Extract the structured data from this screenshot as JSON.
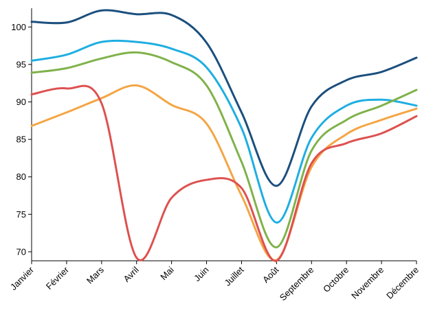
{
  "chart_data": {
    "type": "line",
    "title": "",
    "xlabel": "",
    "ylabel": "",
    "categories": [
      "Janvier",
      "Février",
      "Mars",
      "Avril",
      "Mai",
      "Juin",
      "Juillet",
      "Août",
      "Septembre",
      "Octobre",
      "Novembre",
      "Décembre"
    ],
    "ylim": [
      68.8,
      102.5
    ],
    "yticks": [
      70,
      75,
      80,
      85,
      90,
      95,
      100
    ],
    "y_tick_labels": [
      "70",
      "75",
      "80",
      "85",
      "90",
      "95",
      "100"
    ],
    "grid": false,
    "legend": "none",
    "series": [
      {
        "color": "#1b4f7e",
        "values": [
          100.7,
          100.6,
          102.2,
          101.7,
          101.6,
          97.9,
          88.6,
          78.8,
          89.4,
          92.9,
          94.0,
          95.9
        ]
      },
      {
        "color": "#1eaee1",
        "values": [
          95.5,
          96.3,
          98.0,
          98.0,
          97.1,
          94.6,
          86.5,
          73.9,
          85.2,
          89.5,
          90.3,
          89.5
        ]
      },
      {
        "color": "#7fb24a",
        "values": [
          93.9,
          94.5,
          95.8,
          96.6,
          95.3,
          92.2,
          82.0,
          70.6,
          83.5,
          87.6,
          89.5,
          91.6
        ]
      },
      {
        "color": "#f4a544",
        "values": [
          86.8,
          88.6,
          90.5,
          92.2,
          89.6,
          87.1,
          77.5,
          68.9,
          81.3,
          85.7,
          87.6,
          89.1
        ]
      },
      {
        "color": "#dd5150",
        "values": [
          91.0,
          91.8,
          89.8,
          69.2,
          77.2,
          79.6,
          78.5,
          68.8,
          81.8,
          84.5,
          85.8,
          88.1
        ]
      }
    ]
  }
}
